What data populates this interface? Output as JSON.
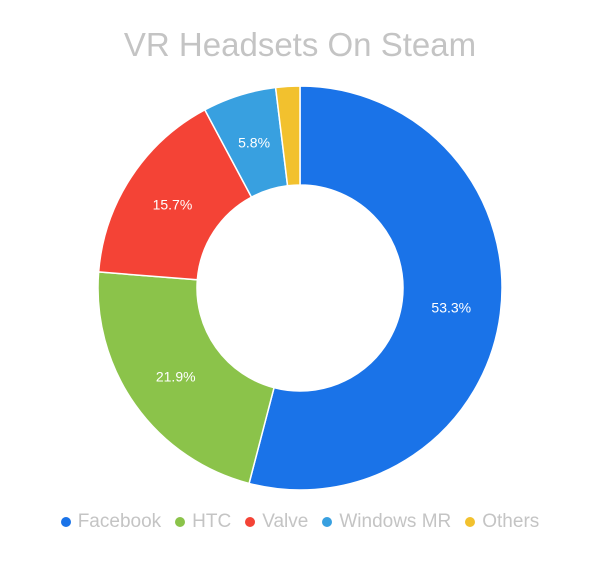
{
  "chart_data": {
    "type": "pie",
    "title": "VR Headsets On Steam",
    "categories": [
      "Facebook",
      "HTC",
      "Valve",
      "Windows MR",
      "Others"
    ],
    "values": [
      53.3,
      21.9,
      15.7,
      5.8,
      1.9
    ],
    "data_labels": [
      "53.3%",
      "21.9%",
      "15.7%",
      "5.8%",
      ""
    ],
    "colors": [
      "#1a73e8",
      "#8bc34a",
      "#f44336",
      "#38a0e0",
      "#f2c12e"
    ],
    "legend_position": "bottom",
    "donut": true
  }
}
